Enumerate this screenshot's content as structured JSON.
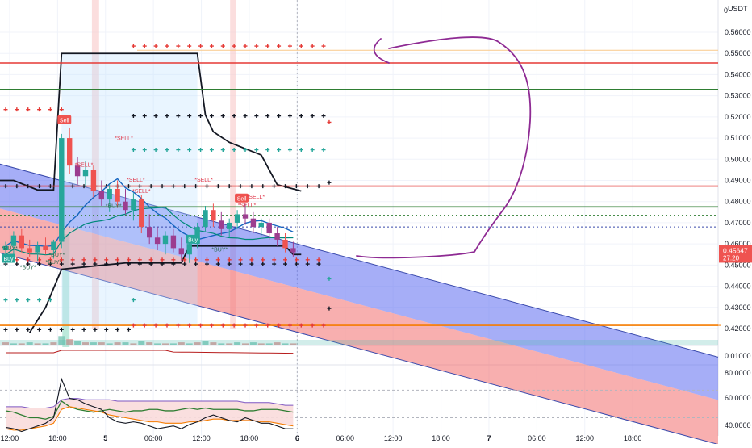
{
  "currency_label": "USDT",
  "chart_data": {
    "type": "line",
    "title": "",
    "xlabel": "",
    "ylabel": "",
    "price_axis": {
      "ylim": [
        0.418,
        0.567
      ],
      "ticks": [
        "0.56000",
        "0.55000",
        "0.54000",
        "0.53000",
        "0.52000",
        "0.51000",
        "0.50000",
        "0.49000",
        "0.48000",
        "0.47000",
        "0.46000",
        "0.45000",
        "0.44000",
        "0.43000",
        "0.42000"
      ],
      "tick_values": [
        0.56,
        0.55,
        0.54,
        0.53,
        0.52,
        0.51,
        0.5,
        0.49,
        0.48,
        0.47,
        0.46,
        0.45,
        0.44,
        0.43,
        0.42
      ],
      "top_label": "0"
    },
    "lower_axis": {
      "ticks": [
        "0.01000",
        "80.0000",
        "60.0000",
        "40.0000"
      ]
    },
    "current_price": {
      "value": "0.45647",
      "countdown": "27:20"
    },
    "time_ticks": [
      "12:00",
      "18:00",
      "5",
      "06:00",
      "12:00",
      "18:00",
      "6",
      "06:00",
      "12:00",
      "18:00",
      "7",
      "06:00",
      "12:00",
      "18:00"
    ],
    "time_index": [
      0.5,
      6.5,
      12.5,
      18.5,
      24.5,
      30.5,
      36.5,
      42.5,
      48.5,
      54.5,
      60.5,
      66.5,
      72.5,
      78.5
    ],
    "candles": [
      {
        "t": 0,
        "o": 0.457,
        "h": 0.461,
        "l": 0.45,
        "c": 0.459
      },
      {
        "t": 1,
        "o": 0.459,
        "h": 0.466,
        "l": 0.455,
        "c": 0.464
      },
      {
        "t": 2,
        "o": 0.464,
        "h": 0.467,
        "l": 0.456,
        "c": 0.458
      },
      {
        "t": 3,
        "o": 0.458,
        "h": 0.462,
        "l": 0.454,
        "c": 0.456
      },
      {
        "t": 4,
        "o": 0.456,
        "h": 0.461,
        "l": 0.452,
        "c": 0.459
      },
      {
        "t": 5,
        "o": 0.459,
        "h": 0.463,
        "l": 0.455,
        "c": 0.457
      },
      {
        "t": 6,
        "o": 0.457,
        "h": 0.462,
        "l": 0.453,
        "c": 0.461
      },
      {
        "t": 7,
        "o": 0.461,
        "h": 0.512,
        "l": 0.458,
        "c": 0.51
      },
      {
        "t": 8,
        "o": 0.51,
        "h": 0.515,
        "l": 0.493,
        "c": 0.497
      },
      {
        "t": 9,
        "o": 0.497,
        "h": 0.501,
        "l": 0.488,
        "c": 0.492
      },
      {
        "t": 10,
        "o": 0.492,
        "h": 0.499,
        "l": 0.487,
        "c": 0.495
      },
      {
        "t": 11,
        "o": 0.495,
        "h": 0.497,
        "l": 0.482,
        "c": 0.485
      },
      {
        "t": 12,
        "o": 0.485,
        "h": 0.49,
        "l": 0.478,
        "c": 0.481
      },
      {
        "t": 13,
        "o": 0.481,
        "h": 0.488,
        "l": 0.475,
        "c": 0.486
      },
      {
        "t": 14,
        "o": 0.486,
        "h": 0.49,
        "l": 0.477,
        "c": 0.48
      },
      {
        "t": 15,
        "o": 0.48,
        "h": 0.486,
        "l": 0.474,
        "c": 0.476
      },
      {
        "t": 16,
        "o": 0.476,
        "h": 0.484,
        "l": 0.471,
        "c": 0.481
      },
      {
        "t": 17,
        "o": 0.481,
        "h": 0.483,
        "l": 0.465,
        "c": 0.468
      },
      {
        "t": 18,
        "o": 0.468,
        "h": 0.474,
        "l": 0.46,
        "c": 0.463
      },
      {
        "t": 19,
        "o": 0.463,
        "h": 0.468,
        "l": 0.457,
        "c": 0.46
      },
      {
        "t": 20,
        "o": 0.46,
        "h": 0.466,
        "l": 0.455,
        "c": 0.464
      },
      {
        "t": 21,
        "o": 0.464,
        "h": 0.467,
        "l": 0.456,
        "c": 0.458
      },
      {
        "t": 22,
        "o": 0.458,
        "h": 0.463,
        "l": 0.452,
        "c": 0.455
      },
      {
        "t": 23,
        "o": 0.455,
        "h": 0.462,
        "l": 0.451,
        "c": 0.46
      },
      {
        "t": 24,
        "o": 0.46,
        "h": 0.47,
        "l": 0.458,
        "c": 0.468
      },
      {
        "t": 25,
        "o": 0.468,
        "h": 0.478,
        "l": 0.466,
        "c": 0.476
      },
      {
        "t": 26,
        "o": 0.476,
        "h": 0.479,
        "l": 0.468,
        "c": 0.471
      },
      {
        "t": 27,
        "o": 0.471,
        "h": 0.475,
        "l": 0.464,
        "c": 0.467
      },
      {
        "t": 28,
        "o": 0.467,
        "h": 0.472,
        "l": 0.463,
        "c": 0.47
      },
      {
        "t": 29,
        "o": 0.47,
        "h": 0.476,
        "l": 0.467,
        "c": 0.474
      },
      {
        "t": 30,
        "o": 0.474,
        "h": 0.479,
        "l": 0.469,
        "c": 0.472
      },
      {
        "t": 31,
        "o": 0.472,
        "h": 0.475,
        "l": 0.465,
        "c": 0.468
      },
      {
        "t": 32,
        "o": 0.468,
        "h": 0.472,
        "l": 0.464,
        "c": 0.47
      },
      {
        "t": 33,
        "o": 0.47,
        "h": 0.472,
        "l": 0.462,
        "c": 0.465
      },
      {
        "t": 34,
        "o": 0.465,
        "h": 0.468,
        "l": 0.459,
        "c": 0.462
      },
      {
        "t": 35,
        "o": 0.462,
        "h": 0.465,
        "l": 0.456,
        "c": 0.458
      },
      {
        "t": 36,
        "o": 0.458,
        "h": 0.461,
        "l": 0.454,
        "c": 0.456
      }
    ],
    "horizontal_levels": [
      {
        "name": "resistance-1",
        "value": 0.5455,
        "color": "#e53935"
      },
      {
        "name": "resistance-2",
        "value": 0.533,
        "color": "#2e7d32"
      },
      {
        "name": "resistance-3",
        "value": 0.4873,
        "color": "#e53935"
      },
      {
        "name": "support-1",
        "value": 0.4775,
        "color": "#2e7d32"
      },
      {
        "name": "support-2",
        "value": 0.4215,
        "color": "#f57c00"
      }
    ],
    "regression_channel": {
      "x_start": -1,
      "x_end": 60,
      "upper_start": 0.498,
      "upper_end": 0.4645,
      "mid_start": 0.477,
      "mid_end": 0.444,
      "lower_start": 0.456,
      "lower_end": 0.423,
      "upper_color": "#5c6bf0",
      "lower_color": "#f36d6d"
    },
    "stop_line": [
      [
        -1,
        0.49
      ],
      [
        1,
        0.49
      ],
      [
        4,
        0.4855
      ],
      [
        6,
        0.4855
      ],
      [
        7,
        0.55
      ],
      [
        24,
        0.55
      ],
      [
        25,
        0.521
      ],
      [
        26,
        0.513
      ],
      [
        28,
        0.508
      ],
      [
        32,
        0.502
      ],
      [
        34,
        0.488
      ],
      [
        37,
        0.485
      ]
    ],
    "lower_stop_line": [
      [
        3,
        0.418
      ],
      [
        5,
        0.43
      ],
      [
        7,
        0.448
      ],
      [
        15,
        0.451
      ],
      [
        22,
        0.451
      ],
      [
        23,
        0.459
      ],
      [
        35,
        0.459
      ],
      [
        36,
        0.455
      ],
      [
        37,
        0.455
      ]
    ],
    "signal_labels": [
      {
        "t": 7.3,
        "price": 0.5185,
        "text": "Sell",
        "kind": "sell-box"
      },
      {
        "t": 29.5,
        "price": 0.4815,
        "text": "Sell",
        "kind": "sell-box"
      },
      {
        "t": 0.3,
        "price": 0.453,
        "text": "Buy",
        "kind": "buy-box"
      },
      {
        "t": 23.4,
        "price": 0.462,
        "text": "Buy",
        "kind": "buy-box"
      },
      {
        "t": 14.8,
        "price": 0.509,
        "text": "*SELL*",
        "kind": "sell-text"
      },
      {
        "t": 9.8,
        "price": 0.4965,
        "text": "*SELL*",
        "kind": "sell-text"
      },
      {
        "t": 16.3,
        "price": 0.4895,
        "text": "*SELL*",
        "kind": "sell-text"
      },
      {
        "t": 17.0,
        "price": 0.484,
        "text": "*SELL*",
        "kind": "sell-text"
      },
      {
        "t": 24.8,
        "price": 0.4895,
        "text": "*SELL*",
        "kind": "sell-text"
      },
      {
        "t": 31.3,
        "price": 0.4815,
        "text": "*SELL*",
        "kind": "sell-text"
      },
      {
        "t": 30.2,
        "price": 0.4775,
        "text": "*SELL*",
        "kind": "sell-text"
      },
      {
        "t": 6.0,
        "price": 0.4505,
        "text": "*BUY*",
        "kind": "buy-text"
      },
      {
        "t": 2.8,
        "price": 0.448,
        "text": "*BUY*",
        "kind": "buy-text"
      },
      {
        "t": 6.4,
        "price": 0.454,
        "text": "*BUY*",
        "kind": "buy-text"
      },
      {
        "t": 26.8,
        "price": 0.4565,
        "text": "*BUY*",
        "kind": "buy-text"
      },
      {
        "t": 13.5,
        "price": 0.477,
        "text": "*BUY*",
        "kind": "buy-text"
      },
      {
        "t": 0.5,
        "price": 0.457,
        "text": "*BUY*",
        "kind": "buy-text"
      }
    ],
    "volume": [
      3,
      2,
      2,
      3,
      2,
      2,
      3,
      9,
      6,
      4,
      3,
      3,
      3,
      2,
      3,
      3,
      2,
      4,
      3,
      2,
      2,
      2,
      3,
      2,
      3,
      4,
      3,
      2,
      2,
      3,
      2,
      3,
      2,
      2,
      3,
      2,
      2
    ],
    "oscillator": {
      "ylim": [
        38,
        86
      ],
      "line_a": [
        55,
        54,
        52,
        50,
        50,
        49,
        51,
        62,
        58,
        56,
        55,
        54,
        55,
        56,
        55,
        54,
        55,
        55,
        56,
        56,
        55,
        55,
        56,
        57,
        56,
        57,
        56,
        56,
        56,
        56,
        55,
        55,
        56,
        56,
        56,
        55,
        54
      ],
      "line_b": [
        43,
        42,
        40,
        42,
        44,
        46,
        50,
        78,
        64,
        63,
        60,
        58,
        56,
        50,
        47,
        46,
        47,
        46,
        44,
        42,
        43,
        44,
        42,
        45,
        47,
        50,
        52,
        50,
        48,
        47,
        50,
        48,
        46,
        46,
        44,
        42,
        42
      ],
      "line_c": [
        42,
        41,
        41,
        42,
        43,
        44,
        46,
        56,
        58,
        57,
        56,
        55,
        54,
        52,
        51,
        50,
        49,
        48,
        47,
        47,
        46,
        46,
        46,
        47,
        47,
        48,
        49,
        49,
        48,
        48,
        48,
        48,
        47,
        47,
        46,
        45,
        44
      ],
      "band_upper": [
        58,
        58,
        58,
        57,
        57,
        57,
        58,
        63,
        64,
        64,
        63,
        63,
        63,
        63,
        62,
        62,
        62,
        62,
        62,
        62,
        62,
        62,
        62,
        62,
        62,
        62,
        62,
        62,
        62,
        62,
        61,
        61,
        61,
        61,
        60,
        59,
        59
      ],
      "dashed_levels": [
        70,
        50
      ]
    }
  }
}
